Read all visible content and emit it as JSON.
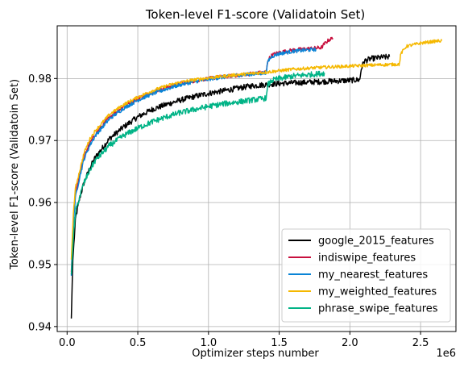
{
  "chart_data": {
    "type": "line",
    "title": "Token-level F1-score (Validatoin Set)",
    "xlabel": "Optimizer steps number",
    "ylabel": "Token-level F1-score (Validatoin Set)",
    "x_offset_label": "1e6",
    "xlim": [
      -0.07,
      2.75
    ],
    "ylim": [
      0.9392,
      0.9885
    ],
    "xticks": [
      0.0,
      0.5,
      1.0,
      1.5,
      2.0,
      2.5
    ],
    "xtick_labels": [
      "0.0",
      "0.5",
      "1.0",
      "1.5",
      "2.0",
      "2.5"
    ],
    "yticks": [
      0.94,
      0.95,
      0.96,
      0.97,
      0.98
    ],
    "ytick_labels": [
      "0.94",
      "0.95",
      "0.96",
      "0.97",
      "0.98"
    ],
    "grid": true,
    "legend_position": "lower-right",
    "series": [
      {
        "name": "google_2015_features",
        "color": "#000000",
        "noise": 0.00045,
        "points": [
          [
            0.03,
            0.9413
          ],
          [
            0.04,
            0.9505
          ],
          [
            0.06,
            0.9575
          ],
          [
            0.09,
            0.9608
          ],
          [
            0.12,
            0.9632
          ],
          [
            0.16,
            0.9655
          ],
          [
            0.2,
            0.9673
          ],
          [
            0.3,
            0.9703
          ],
          [
            0.4,
            0.9722
          ],
          [
            0.5,
            0.9738
          ],
          [
            0.6,
            0.975
          ],
          [
            0.7,
            0.9758
          ],
          [
            0.8,
            0.9765
          ],
          [
            0.9,
            0.9771
          ],
          [
            1.0,
            0.9776
          ],
          [
            1.1,
            0.978
          ],
          [
            1.2,
            0.9784
          ],
          [
            1.3,
            0.9788
          ],
          [
            1.4,
            0.979
          ],
          [
            1.5,
            0.9792
          ],
          [
            1.6,
            0.9793
          ],
          [
            1.7,
            0.9794
          ],
          [
            1.8,
            0.9795
          ],
          [
            1.9,
            0.9796
          ],
          [
            2.0,
            0.9797
          ],
          [
            2.07,
            0.9798
          ],
          [
            2.08,
            0.9815
          ],
          [
            2.1,
            0.9828
          ],
          [
            2.15,
            0.9832
          ],
          [
            2.22,
            0.9834
          ],
          [
            2.28,
            0.9835
          ]
        ]
      },
      {
        "name": "indiswipe_features",
        "color": "#c8103e",
        "noise": 0.0003,
        "points": [
          [
            0.03,
            0.9488
          ],
          [
            0.045,
            0.9575
          ],
          [
            0.06,
            0.9615
          ],
          [
            0.09,
            0.9645
          ],
          [
            0.12,
            0.9675
          ],
          [
            0.16,
            0.9695
          ],
          [
            0.2,
            0.971
          ],
          [
            0.3,
            0.9738
          ],
          [
            0.4,
            0.9755
          ],
          [
            0.5,
            0.9768
          ],
          [
            0.6,
            0.9778
          ],
          [
            0.7,
            0.9786
          ],
          [
            0.8,
            0.9792
          ],
          [
            0.9,
            0.9796
          ],
          [
            1.0,
            0.98
          ],
          [
            1.1,
            0.9803
          ],
          [
            1.2,
            0.9805
          ],
          [
            1.3,
            0.9808
          ],
          [
            1.4,
            0.981
          ],
          [
            1.41,
            0.9812
          ],
          [
            1.42,
            0.983
          ],
          [
            1.45,
            0.9838
          ],
          [
            1.5,
            0.9842
          ],
          [
            1.6,
            0.9846
          ],
          [
            1.7,
            0.9848
          ],
          [
            1.8,
            0.985
          ],
          [
            1.82,
            0.9856
          ],
          [
            1.85,
            0.9862
          ],
          [
            1.88,
            0.9865
          ]
        ]
      },
      {
        "name": "my_nearest_features",
        "color": "#0a84d6",
        "noise": 0.0003,
        "points": [
          [
            0.03,
            0.9482
          ],
          [
            0.045,
            0.957
          ],
          [
            0.06,
            0.961
          ],
          [
            0.09,
            0.9642
          ],
          [
            0.12,
            0.967
          ],
          [
            0.16,
            0.9692
          ],
          [
            0.2,
            0.9708
          ],
          [
            0.3,
            0.9735
          ],
          [
            0.4,
            0.9752
          ],
          [
            0.5,
            0.9765
          ],
          [
            0.6,
            0.9775
          ],
          [
            0.7,
            0.9783
          ],
          [
            0.8,
            0.979
          ],
          [
            0.9,
            0.9795
          ],
          [
            1.0,
            0.9799
          ],
          [
            1.1,
            0.9802
          ],
          [
            1.2,
            0.9805
          ],
          [
            1.3,
            0.9807
          ],
          [
            1.4,
            0.9809
          ],
          [
            1.41,
            0.9811
          ],
          [
            1.42,
            0.9828
          ],
          [
            1.45,
            0.9836
          ],
          [
            1.5,
            0.984
          ],
          [
            1.6,
            0.9844
          ],
          [
            1.7,
            0.9846
          ],
          [
            1.76,
            0.9847
          ]
        ]
      },
      {
        "name": "my_weighted_features",
        "color": "#f5b800",
        "noise": 0.00025,
        "points": [
          [
            0.03,
            0.9508
          ],
          [
            0.045,
            0.9585
          ],
          [
            0.06,
            0.9625
          ],
          [
            0.09,
            0.9652
          ],
          [
            0.12,
            0.968
          ],
          [
            0.16,
            0.9702
          ],
          [
            0.2,
            0.9716
          ],
          [
            0.3,
            0.9742
          ],
          [
            0.4,
            0.9758
          ],
          [
            0.5,
            0.977
          ],
          [
            0.6,
            0.978
          ],
          [
            0.7,
            0.9788
          ],
          [
            0.8,
            0.9794
          ],
          [
            0.9,
            0.9798
          ],
          [
            1.0,
            0.9801
          ],
          [
            1.2,
            0.9806
          ],
          [
            1.4,
            0.981
          ],
          [
            1.6,
            0.9815
          ],
          [
            1.8,
            0.9818
          ],
          [
            2.0,
            0.982
          ],
          [
            2.2,
            0.9822
          ],
          [
            2.35,
            0.9823
          ],
          [
            2.36,
            0.984
          ],
          [
            2.4,
            0.9852
          ],
          [
            2.5,
            0.9857
          ],
          [
            2.6,
            0.986
          ],
          [
            2.65,
            0.9861
          ]
        ]
      },
      {
        "name": "phrase_swipe_features",
        "color": "#00b386",
        "noise": 0.00045,
        "points": [
          [
            0.03,
            0.9484
          ],
          [
            0.045,
            0.9545
          ],
          [
            0.06,
            0.9585
          ],
          [
            0.09,
            0.961
          ],
          [
            0.12,
            0.9632
          ],
          [
            0.16,
            0.9652
          ],
          [
            0.2,
            0.9668
          ],
          [
            0.3,
            0.9692
          ],
          [
            0.4,
            0.9708
          ],
          [
            0.5,
            0.972
          ],
          [
            0.6,
            0.973
          ],
          [
            0.7,
            0.9738
          ],
          [
            0.8,
            0.9745
          ],
          [
            0.9,
            0.975
          ],
          [
            1.0,
            0.9755
          ],
          [
            1.1,
            0.9759
          ],
          [
            1.2,
            0.9762
          ],
          [
            1.3,
            0.9765
          ],
          [
            1.4,
            0.9768
          ],
          [
            1.41,
            0.977
          ],
          [
            1.42,
            0.979
          ],
          [
            1.45,
            0.9797
          ],
          [
            1.5,
            0.98
          ],
          [
            1.6,
            0.9804
          ],
          [
            1.7,
            0.9806
          ],
          [
            1.8,
            0.9808
          ],
          [
            1.82,
            0.9809
          ]
        ]
      }
    ]
  }
}
